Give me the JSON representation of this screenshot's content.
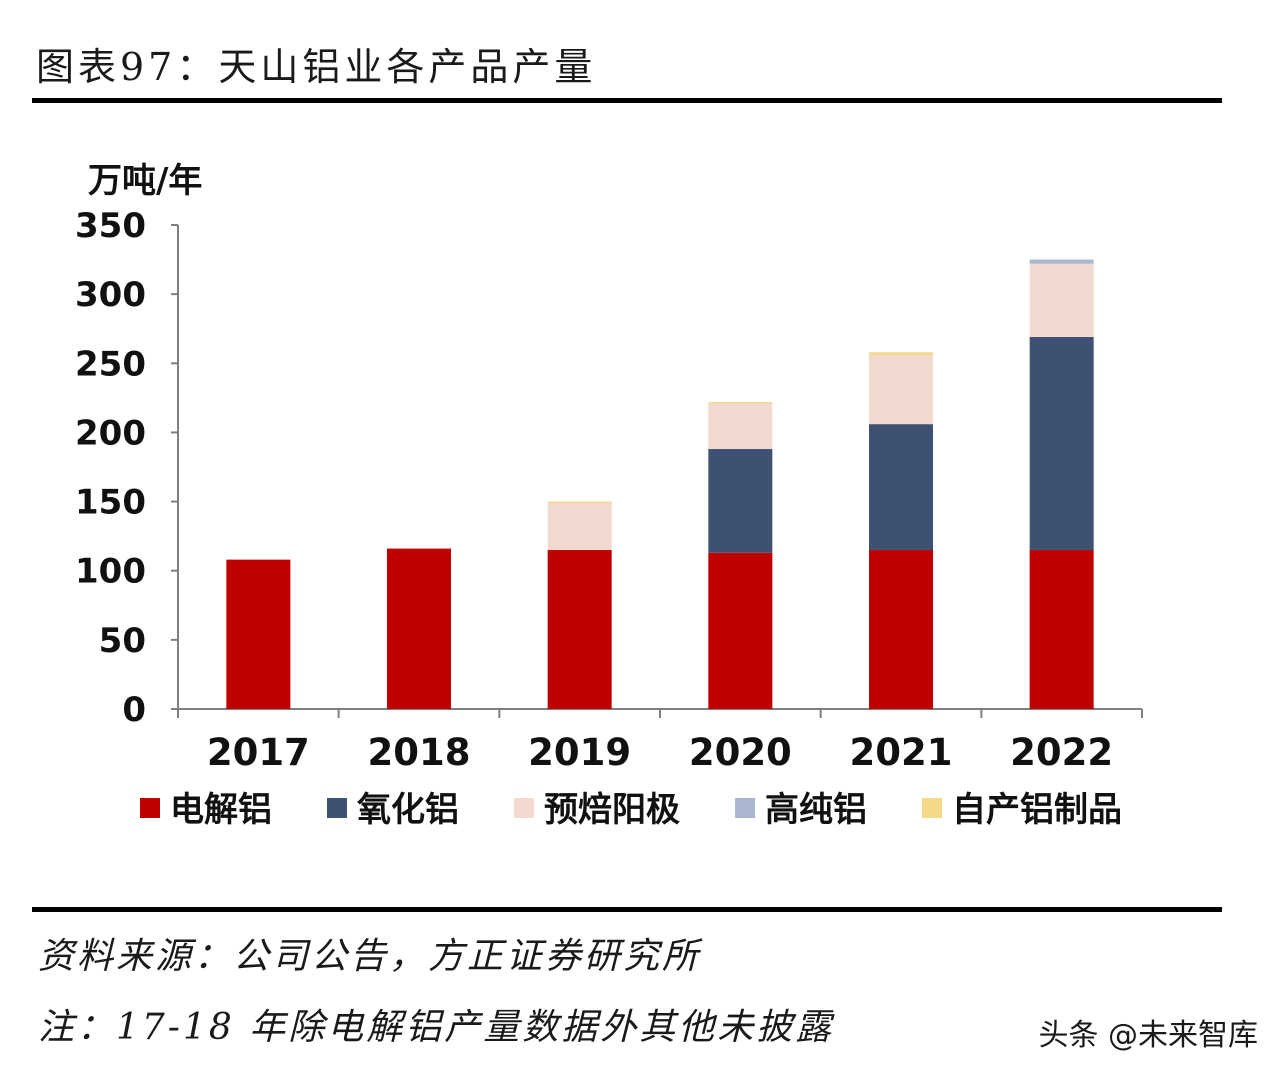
{
  "title": "图表97：天山铝业各产品产量",
  "source": "资料来源：公司公告，方正证券研究所",
  "footnote": "注：17-18 年除电解铝产量数据外其他未披露",
  "watermark": "头条 @未来智库",
  "chart_data": {
    "type": "bar",
    "stacked": true,
    "title": "",
    "xlabel": "",
    "ylabel": "万吨/年",
    "ylim": [
      0,
      350
    ],
    "yticks": [
      0,
      50,
      100,
      150,
      200,
      250,
      300,
      350
    ],
    "categories": [
      "2017",
      "2018",
      "2019",
      "2020",
      "2021",
      "2022"
    ],
    "series": [
      {
        "name": "电解铝",
        "color": "#C00000",
        "values": [
          108,
          116,
          115,
          113,
          115,
          115
        ]
      },
      {
        "name": "氧化铝",
        "color": "#3F5172",
        "values": [
          0,
          0,
          0,
          75,
          91,
          154
        ]
      },
      {
        "name": "预焙阳极",
        "color": "#F1D9CF",
        "values": [
          0,
          0,
          34,
          33,
          50,
          53
        ]
      },
      {
        "name": "高纯铝",
        "color": "#A9B8CE",
        "values": [
          0,
          0,
          0,
          0,
          0,
          3
        ]
      },
      {
        "name": "自产铝制品",
        "color": "#F5D88A",
        "values": [
          0,
          0,
          1,
          1,
          2,
          0
        ]
      }
    ],
    "grid": false,
    "legend": "bottom"
  }
}
